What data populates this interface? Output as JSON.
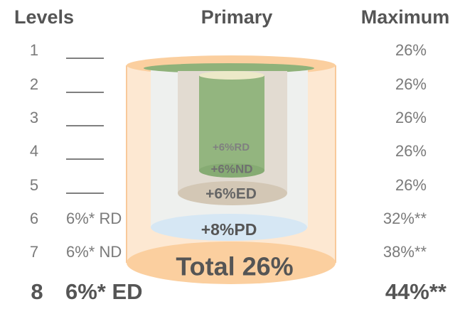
{
  "header": {
    "levels": "Levels",
    "primary": "Primary",
    "maximum": "Maximum"
  },
  "rows": [
    {
      "level": "1",
      "maximum": "26%"
    },
    {
      "level": "2",
      "maximum": "26%"
    },
    {
      "level": "3",
      "maximum": "26%"
    },
    {
      "level": "4",
      "maximum": "26%"
    },
    {
      "level": "5",
      "maximum": "26%"
    },
    {
      "level": "6",
      "primary": "6%* RD",
      "maximum": "32%**"
    },
    {
      "level": "7",
      "primary": "6%* ND",
      "maximum": "38%**"
    },
    {
      "level": "8",
      "primary": "6%* ED",
      "maximum": "44%**"
    }
  ],
  "cylinder": {
    "rd": "+6%RD",
    "nd": "+6%ND",
    "ed": "+6%ED",
    "pd": "+8%PD",
    "total": "Total 26%"
  }
}
